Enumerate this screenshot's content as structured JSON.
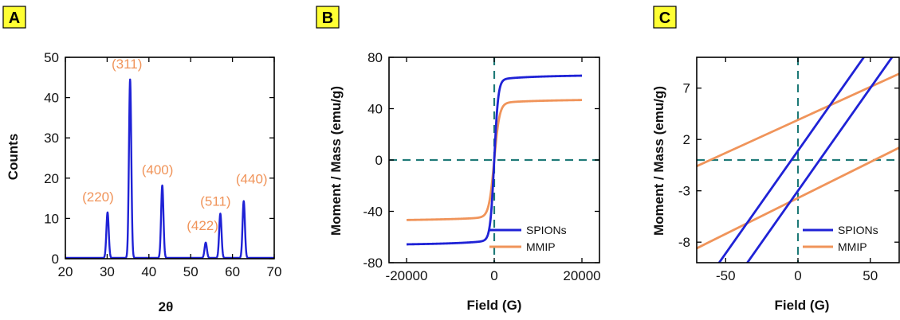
{
  "chart_data": [
    {
      "panel": "A",
      "type": "line",
      "xlabel": "2θ",
      "ylabel": "Counts",
      "xlim": [
        20,
        70
      ],
      "ylim": [
        0,
        50
      ],
      "xticks": [
        "20",
        "30",
        "40",
        "50",
        "60",
        "70"
      ],
      "yticks": [
        "0",
        "10",
        "20",
        "30",
        "40",
        "50"
      ],
      "grid": false,
      "colors": {
        "line": "#1f22d6",
        "labels": "#f0945a"
      },
      "peaks": [
        {
          "x": 30.1,
          "y": 11.5,
          "label": "(220)"
        },
        {
          "x": 35.5,
          "y": 44.5,
          "label": "(311)"
        },
        {
          "x": 43.2,
          "y": 18.2,
          "label": "(400)"
        },
        {
          "x": 53.6,
          "y": 4.0,
          "label": "(422)"
        },
        {
          "x": 57.1,
          "y": 11.2,
          "label": "(511)"
        },
        {
          "x": 62.7,
          "y": 14.3,
          "label": "(440)"
        }
      ],
      "baseline": 0.2
    },
    {
      "panel": "B",
      "type": "line",
      "xlabel": "Field (G)",
      "ylabel": "Moment / Mass (emu/g)",
      "xlim": [
        -24000,
        24000
      ],
      "ylim": [
        -80,
        80
      ],
      "xticks": [
        "-20000",
        "0",
        "20000"
      ],
      "yticks": [
        "80",
        "40",
        "0",
        "-40",
        "-80"
      ],
      "grid": false,
      "legend": "bottom-right",
      "reference_lines": {
        "x": 0,
        "y": 0,
        "style": "dashed",
        "color": "#1f7a78"
      },
      "series": [
        {
          "name": "SPIONs",
          "color": "#1f22d6",
          "saturation": 65,
          "h0": 900
        },
        {
          "name": "MMIP",
          "color": "#f0945a",
          "saturation": 46,
          "h0": 1200
        }
      ]
    },
    {
      "panel": "C",
      "type": "line",
      "xlabel": "Field (G)",
      "ylabel": "Moment / Mass (emu/g)",
      "xlim": [
        -70,
        70
      ],
      "ylim": [
        -10,
        10
      ],
      "xticks": [
        "-50",
        "0",
        "50"
      ],
      "yticks": [
        "7",
        "2",
        "-3",
        "-8"
      ],
      "grid": false,
      "legend": "bottom-right",
      "reference_lines": {
        "x": 0,
        "y": 0,
        "style": "dashed",
        "color": "#1f7a78"
      },
      "series": [
        {
          "name": "SPIONs",
          "color": "#1f22d6",
          "branches": [
            {
              "x": [
                -70,
                55
              ],
              "y": [
                -13.1,
                11.9
              ]
            },
            {
              "x": [
                -40,
                70
              ],
              "y": [
                -11.0,
                11.0
              ]
            }
          ]
        },
        {
          "name": "MMIP",
          "color": "#f0945a",
          "branches": [
            {
              "x": [
                -70,
                70
              ],
              "y": [
                -0.6,
                8.4
              ]
            },
            {
              "x": [
                -70,
                70
              ],
              "y": [
                -8.6,
                1.2
              ]
            }
          ]
        }
      ]
    }
  ]
}
